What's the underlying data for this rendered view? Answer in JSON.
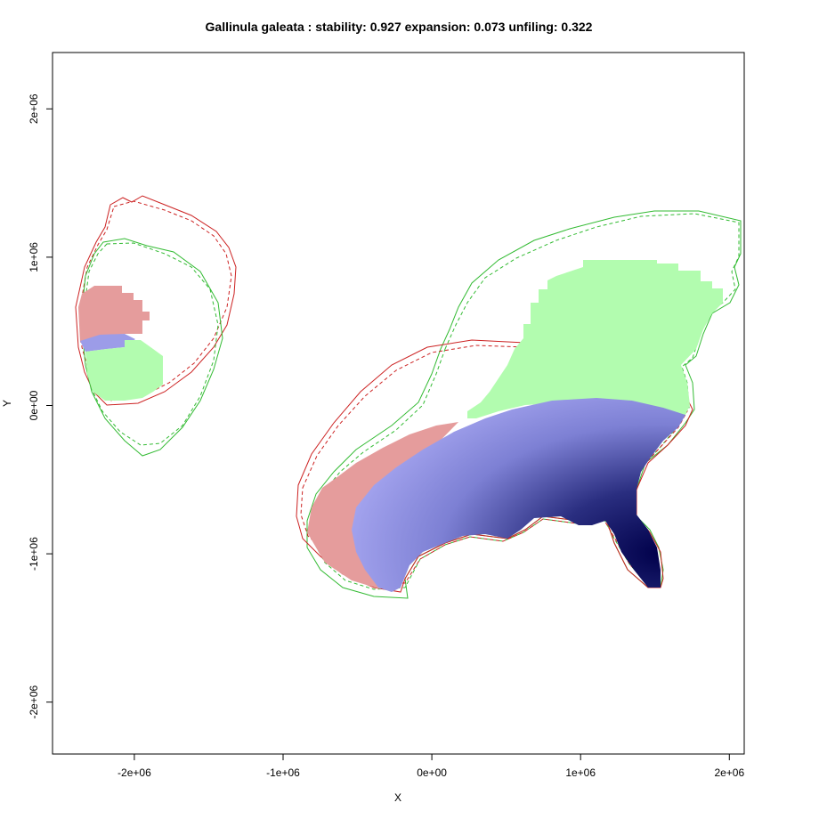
{
  "chart_data": {
    "type": "heatmap",
    "title": "Gallinula galeata : stability: 0.927 expansion: 0.073 unfiling: 0.322",
    "xlabel": "X",
    "ylabel": "Y",
    "xlim": [
      -2550000,
      2100000
    ],
    "ylim": [
      -2350000,
      2380000
    ],
    "x_ticks": [
      {
        "value": -2000000,
        "label": "-2e+06"
      },
      {
        "value": -1000000,
        "label": "-1e+06"
      },
      {
        "value": 0,
        "label": "0e+00"
      },
      {
        "value": 1000000,
        "label": "1e+06"
      },
      {
        "value": 2000000,
        "label": "2e+06"
      }
    ],
    "y_ticks": [
      {
        "value": -2000000,
        "label": "-2e+06"
      },
      {
        "value": -1000000,
        "label": "-1e+06"
      },
      {
        "value": 0,
        "label": "0e+00"
      },
      {
        "value": 1000000,
        "label": "1e+06"
      },
      {
        "value": 2000000,
        "label": "2e+06"
      }
    ],
    "grid": false,
    "legend": "none",
    "colors": {
      "stability_gradient_light": "#a0a0ee",
      "stability_gradient_dark": "#00004a",
      "expansion": "#e59c9c",
      "unfilling": "#b2fcaf",
      "native_outline": "#cc2222",
      "invaded_outline": "#33bb33",
      "overlap_small": "#9c9ce8"
    }
  }
}
